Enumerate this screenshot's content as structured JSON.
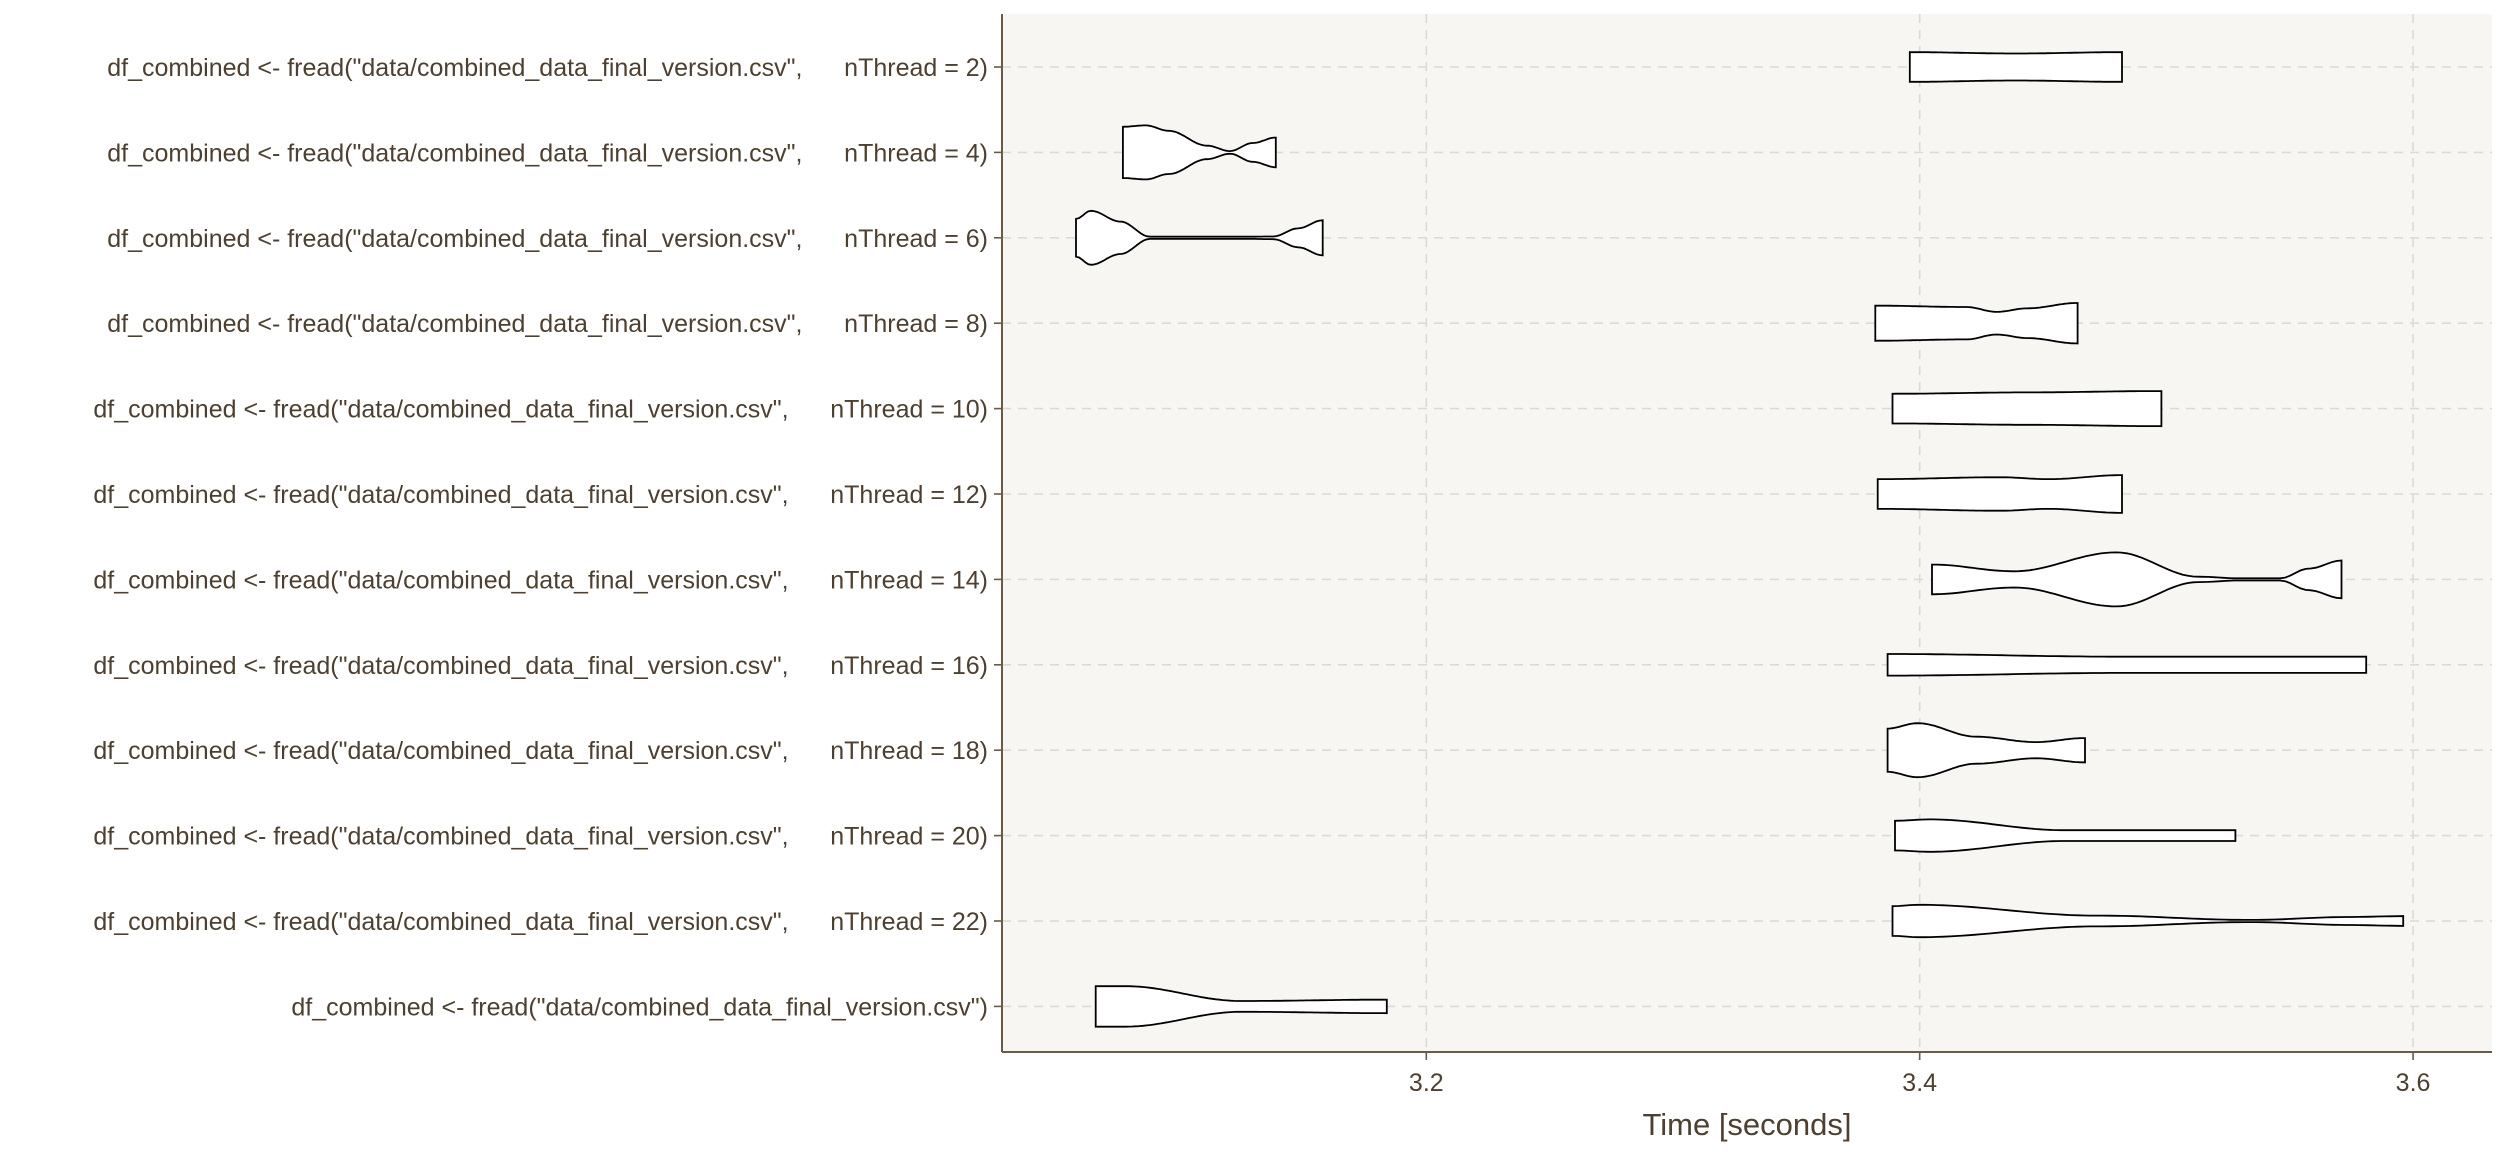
{
  "chart_data": {
    "type": "violin",
    "title": "",
    "xlabel": "Time [seconds]",
    "ylabel": "",
    "xlim": [
      3.028,
      3.632
    ],
    "x_ticks": [
      3.2,
      3.4,
      3.6
    ],
    "x_tick_labels": [
      "3.2",
      "3.4",
      "3.6"
    ],
    "grid": true,
    "legend": "none",
    "colors": {
      "panel": "#f8f6f3",
      "grid": "#dddad5",
      "text": "#4d4030",
      "axis": "#6b5a45",
      "violin_stroke": "#000000",
      "violin_fill": "#ffffff"
    },
    "categories": [
      {
        "label": "df_combined <- fread(\"data/combined_data_final_version.csv\",      nThread = 2)",
        "min": 3.396,
        "max": 3.482,
        "profile": [
          [
            0,
            0.55
          ],
          [
            0.5,
            0.5
          ],
          [
            1,
            0.55
          ]
        ]
      },
      {
        "label": "df_combined <- fread(\"data/combined_data_final_version.csv\",      nThread = 4)",
        "min": 3.077,
        "max": 3.139,
        "profile": [
          [
            0,
            0.95
          ],
          [
            0.15,
            1
          ],
          [
            0.3,
            0.8
          ],
          [
            0.55,
            0.25
          ],
          [
            0.7,
            0.05
          ],
          [
            0.85,
            0.35
          ],
          [
            1,
            0.55
          ]
        ]
      },
      {
        "label": "df_combined <- fread(\"data/combined_data_final_version.csv\",      nThread = 6)",
        "min": 3.058,
        "max": 3.158,
        "profile": [
          [
            0,
            0.7
          ],
          [
            0.06,
            1
          ],
          [
            0.18,
            0.6
          ],
          [
            0.3,
            0.04
          ],
          [
            0.7,
            0.04
          ],
          [
            0.8,
            0.05
          ],
          [
            0.9,
            0.35
          ],
          [
            1,
            0.65
          ]
        ]
      },
      {
        "label": "df_combined <- fread(\"data/combined_data_final_version.csv\",      nThread = 8)",
        "min": 3.382,
        "max": 3.464,
        "profile": [
          [
            0,
            0.65
          ],
          [
            0.45,
            0.6
          ],
          [
            0.6,
            0.42
          ],
          [
            0.75,
            0.55
          ],
          [
            1,
            0.75
          ]
        ]
      },
      {
        "label": "df_combined <- fread(\"data/combined_data_final_version.csv\",      nThread = 10)",
        "min": 3.389,
        "max": 3.498,
        "profile": [
          [
            0,
            0.55
          ],
          [
            0.5,
            0.6
          ],
          [
            1,
            0.65
          ]
        ]
      },
      {
        "label": "df_combined <- fread(\"data/combined_data_final_version.csv\",      nThread = 12)",
        "min": 3.383,
        "max": 3.482,
        "profile": [
          [
            0,
            0.55
          ],
          [
            0.5,
            0.62
          ],
          [
            0.7,
            0.55
          ],
          [
            1,
            0.7
          ]
        ]
      },
      {
        "label": "df_combined <- fread(\"data/combined_data_final_version.csv\",      nThread = 14)",
        "min": 3.405,
        "max": 3.571,
        "profile": [
          [
            0,
            0.55
          ],
          [
            0.2,
            0.3
          ],
          [
            0.45,
            1
          ],
          [
            0.65,
            0.1
          ],
          [
            0.75,
            0.04
          ],
          [
            0.85,
            0.04
          ],
          [
            0.92,
            0.4
          ],
          [
            1,
            0.7
          ]
        ]
      },
      {
        "label": "df_combined <- fread(\"data/combined_data_final_version.csv\",      nThread = 16)",
        "min": 3.387,
        "max": 3.581,
        "profile": [
          [
            0,
            0.4
          ],
          [
            0.5,
            0.3
          ],
          [
            1,
            0.3
          ]
        ]
      },
      {
        "label": "df_combined <- fread(\"data/combined_data_final_version.csv\",      nThread = 18)",
        "min": 3.387,
        "max": 3.467,
        "profile": [
          [
            0,
            0.8
          ],
          [
            0.15,
            1
          ],
          [
            0.45,
            0.5
          ],
          [
            0.75,
            0.3
          ],
          [
            1,
            0.45
          ]
        ]
      },
      {
        "label": "df_combined <- fread(\"data/combined_data_final_version.csv\",      nThread = 20)",
        "min": 3.39,
        "max": 3.528,
        "profile": [
          [
            0,
            0.55
          ],
          [
            0.1,
            0.6
          ],
          [
            0.5,
            0.2
          ],
          [
            1,
            0.2
          ]
        ]
      },
      {
        "label": "df_combined <- fread(\"data/combined_data_final_version.csv\",      nThread = 22)",
        "min": 3.389,
        "max": 3.596,
        "profile": [
          [
            0,
            0.55
          ],
          [
            0.05,
            0.6
          ],
          [
            0.4,
            0.2
          ],
          [
            0.7,
            0.04
          ],
          [
            0.9,
            0.15
          ],
          [
            1,
            0.18
          ]
        ]
      },
      {
        "label": "df_combined <- fread(\"data/combined_data_final_version.csv\")",
        "min": 3.066,
        "max": 3.184,
        "profile": [
          [
            0,
            0.75
          ],
          [
            0.1,
            0.75
          ],
          [
            0.5,
            0.2
          ],
          [
            1,
            0.25
          ]
        ]
      }
    ]
  }
}
